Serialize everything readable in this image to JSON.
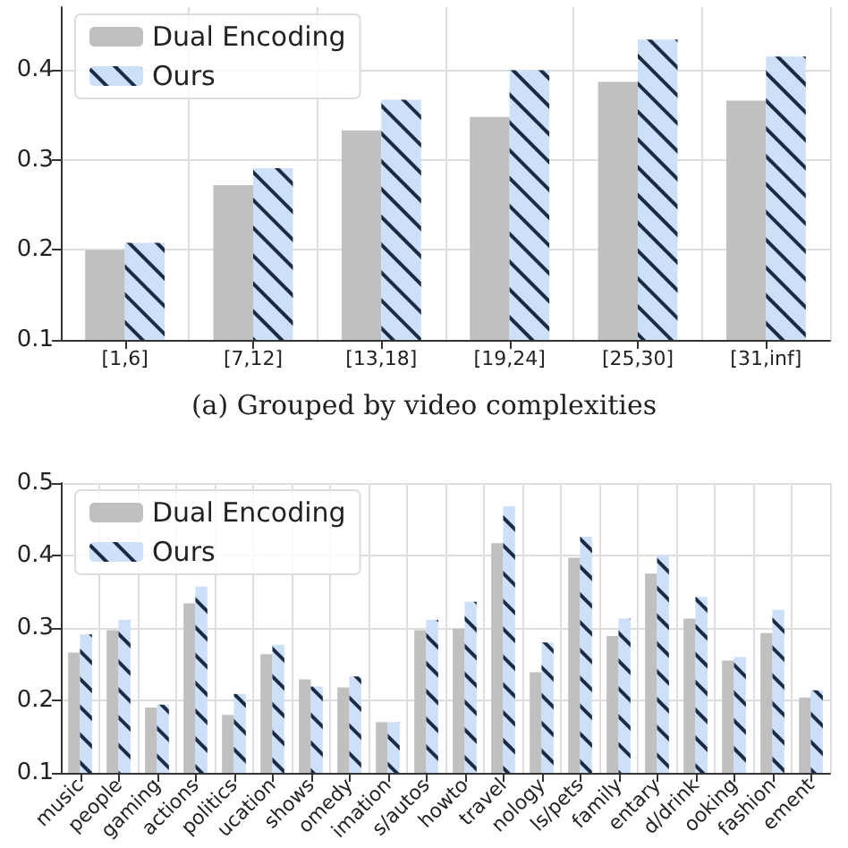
{
  "chart_data": [
    {
      "type": "bar",
      "categories": [
        "[1,6]",
        "[7,12]",
        "[13,18]",
        "[19,24]",
        "[25,30]",
        "[31,inf]"
      ],
      "series": [
        {
          "name": "Dual Encoding",
          "color": "#c0c0c0",
          "values": [
            0.2,
            0.272,
            0.333,
            0.348,
            0.387,
            0.366
          ]
        },
        {
          "name": "Ours",
          "color": "#cce0f8",
          "values": [
            0.208,
            0.291,
            0.367,
            0.4,
            0.434,
            0.415
          ]
        }
      ],
      "ylim": [
        0.1,
        0.47
      ],
      "yticks": [
        0.1,
        0.2,
        0.3,
        0.4
      ],
      "grid": true,
      "legend": "top left",
      "annotations": [
        "(a) Grouped by video complexities"
      ]
    },
    {
      "type": "bar",
      "categories": [
        "music",
        "people",
        "gaming",
        "actions",
        "politics",
        "ucation",
        "shows",
        "omedy",
        "imation",
        "s/autos",
        "howto",
        "travel",
        "nology",
        "ls/pets",
        "family",
        "entary",
        "d/drink",
        "ooking",
        "fashion",
        "ement"
      ],
      "series": [
        {
          "name": "Dual Encoding",
          "color": "#c0c0c0",
          "values": [
            0.266,
            0.297,
            0.19,
            0.334,
            0.18,
            0.264,
            0.229,
            0.218,
            0.17,
            0.297,
            0.299,
            0.417,
            0.239,
            0.397,
            0.289,
            0.375,
            0.313,
            0.255,
            0.293,
            0.204
          ]
        },
        {
          "name": "Ours",
          "color": "#cce0f8",
          "values": [
            0.291,
            0.311,
            0.194,
            0.357,
            0.209,
            0.277,
            0.219,
            0.233,
            0.17,
            0.311,
            0.336,
            0.468,
            0.28,
            0.426,
            0.313,
            0.4,
            0.343,
            0.26,
            0.325,
            0.214
          ]
        }
      ],
      "ylim": [
        0.1,
        0.5
      ],
      "yticks": [
        0.1,
        0.2,
        0.3,
        0.4,
        0.5
      ],
      "grid": true,
      "legend": "top left"
    }
  ]
}
